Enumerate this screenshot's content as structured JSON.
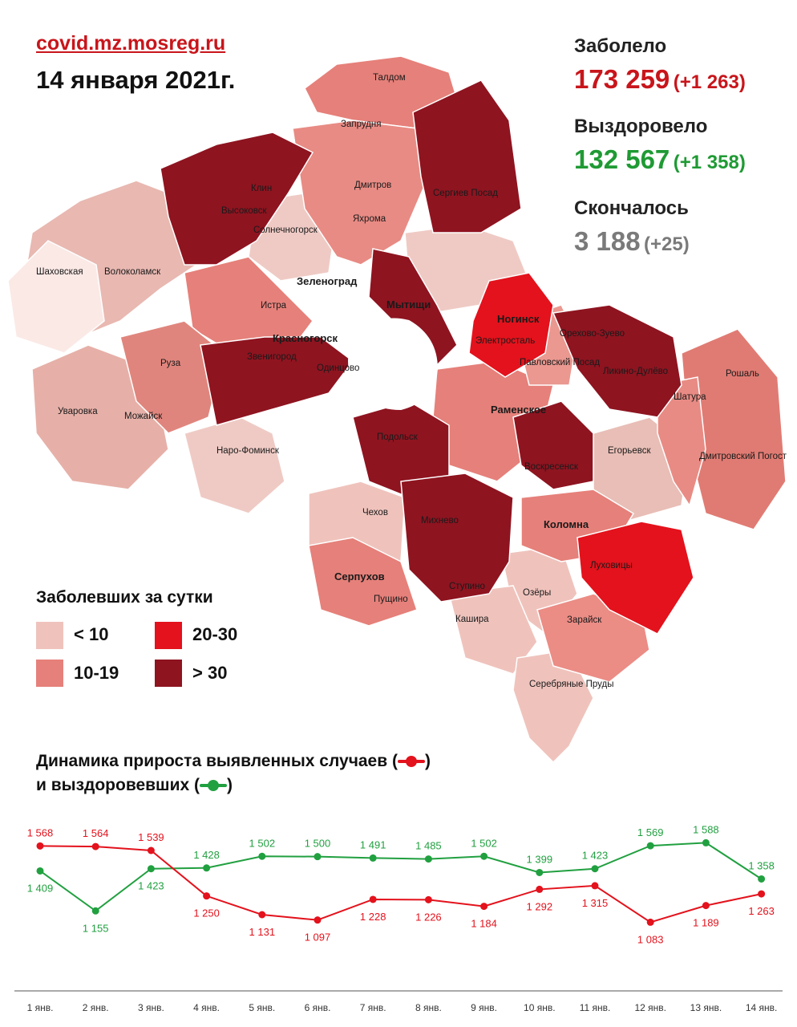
{
  "header": {
    "site": "covid.mz.mosreg.ru",
    "date": "14 января 2021г."
  },
  "stats": {
    "infected": {
      "label": "Заболело",
      "value": "173 259",
      "delta": "(+1 263)",
      "color": "#c8151b"
    },
    "recovered": {
      "label": "Выздоровело",
      "value": "132 567",
      "delta": "(+1 358)",
      "color": "#1f9a34"
    },
    "died": {
      "label": "Скончалось",
      "value": "3 188",
      "delta": "(+25)",
      "color": "#7a7a7a"
    }
  },
  "map": {
    "towns": [
      "Талдом",
      "Запрудня",
      "Дмитров",
      "Яхрома",
      "Сергиев Посад",
      "Клин",
      "Высоковск",
      "Солнечногорск",
      "Шаховская",
      "Волоколамск",
      "Зеленоград",
      "Истра",
      "Мытищи",
      "Красногорск",
      "Звенигород",
      "Одинцово",
      "Руза",
      "Ногинск",
      "Электросталь",
      "Павловский Посад",
      "Орехово-Зуево",
      "Ликино-Дулёво",
      "Рошаль",
      "Шатура",
      "Раменское",
      "Уваровка",
      "Можайск",
      "Наро-Фоминск",
      "Подольск",
      "Воскресенск",
      "Егорьевск",
      "Дмитровский Погост",
      "Чехов",
      "Михнево",
      "Коломна",
      "Луховицы",
      "Серпухов",
      "Пущино",
      "Ступино",
      "Озёры",
      "Кашира",
      "Зарайск",
      "Серебряные Пруды"
    ]
  },
  "legend": {
    "title": "Заболевших за сутки",
    "items": [
      {
        "label": "< 10",
        "color": "#efc3bc"
      },
      {
        "label": "10-19",
        "color": "#e6807a"
      },
      {
        "label": "20-30",
        "color": "#e3121c"
      },
      {
        "label": "> 30",
        "color": "#8e1420"
      }
    ]
  },
  "dynamics": {
    "title_line1_prefix": "Динамика прироста выявленных случаев (",
    "title_line1_suffix": ")",
    "title_line2_prefix": "и выздоровевших (",
    "title_line2_suffix": ")"
  },
  "chart_data": {
    "type": "line",
    "categories": [
      "1 янв.",
      "2 янв.",
      "3 янв.",
      "4 янв.",
      "5 янв.",
      "6 янв.",
      "7 янв.",
      "8 янв.",
      "9 янв.",
      "10 янв.",
      "11 янв.",
      "12 янв.",
      "13 янв.",
      "14 янв."
    ],
    "series": [
      {
        "color": "#e3121c",
        "values": [
          1568,
          1564,
          1539,
          1250,
          1131,
          1097,
          1228,
          1226,
          1184,
          1292,
          1315,
          1083,
          1189,
          1263
        ],
        "labels": [
          "1 568",
          "1 564",
          "1 539",
          "1 250",
          "1 131",
          "1 097",
          "1 228",
          "1 226",
          "1 184",
          "1 292",
          "1 315",
          "1 083",
          "1 189",
          "1 263"
        ]
      },
      {
        "color": "#21a040",
        "values": [
          1409,
          1155,
          1423,
          1428,
          1502,
          1500,
          1491,
          1485,
          1502,
          1399,
          1423,
          1569,
          1588,
          1358
        ],
        "labels": [
          "1 409",
          "1 155",
          "1 423",
          "1 428",
          "1 502",
          "1 500",
          "1 491",
          "1 485",
          "1 502",
          "1 399",
          "1 423",
          "1 569",
          "1 588",
          "1 358"
        ]
      }
    ],
    "ylim": [
      1000,
      1650
    ],
    "grid": false,
    "legend": "title"
  }
}
